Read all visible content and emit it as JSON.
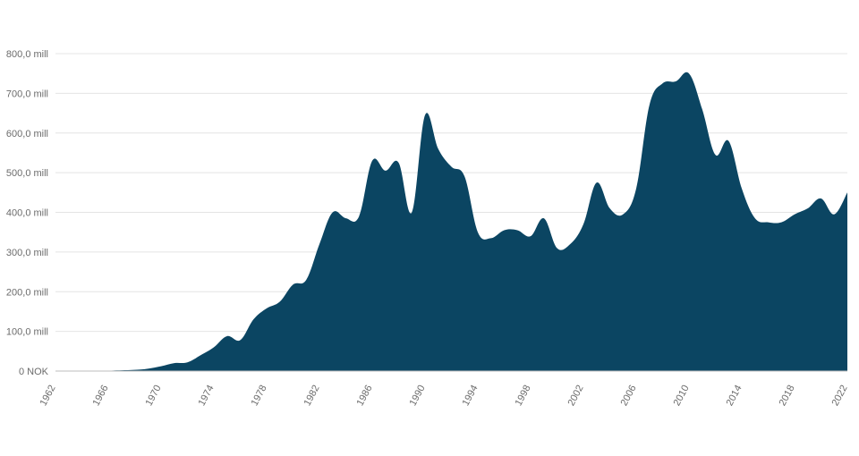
{
  "chart_data": {
    "type": "area",
    "title": "",
    "xlabel": "",
    "ylabel": "",
    "colors": {
      "fill": "#0b4562",
      "grid": "#e4e4e4",
      "text": "#6b6b6b"
    },
    "grid": true,
    "xlim": [
      1962,
      2022
    ],
    "ylim": [
      0,
      800
    ],
    "x_ticks": [
      "1962",
      "1966",
      "1970",
      "1974",
      "1978",
      "1982",
      "1986",
      "1990",
      "1994",
      "1998",
      "2002",
      "2006",
      "2010",
      "2014",
      "2018",
      "2022"
    ],
    "y_ticks": [
      {
        "value": 0,
        "label": "0 NOK"
      },
      {
        "value": 100,
        "label": "100,0 mill"
      },
      {
        "value": 200,
        "label": "200,0 mill"
      },
      {
        "value": 300,
        "label": "300,0 mill"
      },
      {
        "value": 400,
        "label": "400,0 mill"
      },
      {
        "value": 500,
        "label": "500,0 mill"
      },
      {
        "value": 600,
        "label": "600,0 mill"
      },
      {
        "value": 700,
        "label": "700,0 mill"
      },
      {
        "value": 800,
        "label": "800,0 mill"
      }
    ],
    "series": [
      {
        "points": [
          [
            1962,
            0
          ],
          [
            1964,
            0
          ],
          [
            1966,
            1
          ],
          [
            1968,
            3
          ],
          [
            1969,
            6
          ],
          [
            1970,
            12
          ],
          [
            1971,
            20
          ],
          [
            1972,
            22
          ],
          [
            1973,
            40
          ],
          [
            1974,
            60
          ],
          [
            1975,
            88
          ],
          [
            1976,
            78
          ],
          [
            1977,
            130
          ],
          [
            1978,
            158
          ],
          [
            1979,
            175
          ],
          [
            1980,
            218
          ],
          [
            1981,
            230
          ],
          [
            1982,
            320
          ],
          [
            1983,
            400
          ],
          [
            1984,
            385
          ],
          [
            1985,
            390
          ],
          [
            1986,
            530
          ],
          [
            1987,
            505
          ],
          [
            1988,
            525
          ],
          [
            1989,
            400
          ],
          [
            1990,
            645
          ],
          [
            1991,
            560
          ],
          [
            1992,
            515
          ],
          [
            1993,
            490
          ],
          [
            1994,
            350
          ],
          [
            1995,
            335
          ],
          [
            1996,
            355
          ],
          [
            1997,
            355
          ],
          [
            1998,
            340
          ],
          [
            1999,
            385
          ],
          [
            2000,
            310
          ],
          [
            2001,
            320
          ],
          [
            2002,
            370
          ],
          [
            2003,
            475
          ],
          [
            2004,
            410
          ],
          [
            2005,
            395
          ],
          [
            2006,
            460
          ],
          [
            2007,
            670
          ],
          [
            2008,
            725
          ],
          [
            2009,
            730
          ],
          [
            2010,
            750
          ],
          [
            2011,
            660
          ],
          [
            2012,
            545
          ],
          [
            2013,
            580
          ],
          [
            2014,
            460
          ],
          [
            2015,
            385
          ],
          [
            2016,
            375
          ],
          [
            2017,
            375
          ],
          [
            2018,
            395
          ],
          [
            2019,
            410
          ],
          [
            2020,
            435
          ],
          [
            2021,
            395
          ],
          [
            2022,
            450
          ]
        ]
      }
    ]
  }
}
